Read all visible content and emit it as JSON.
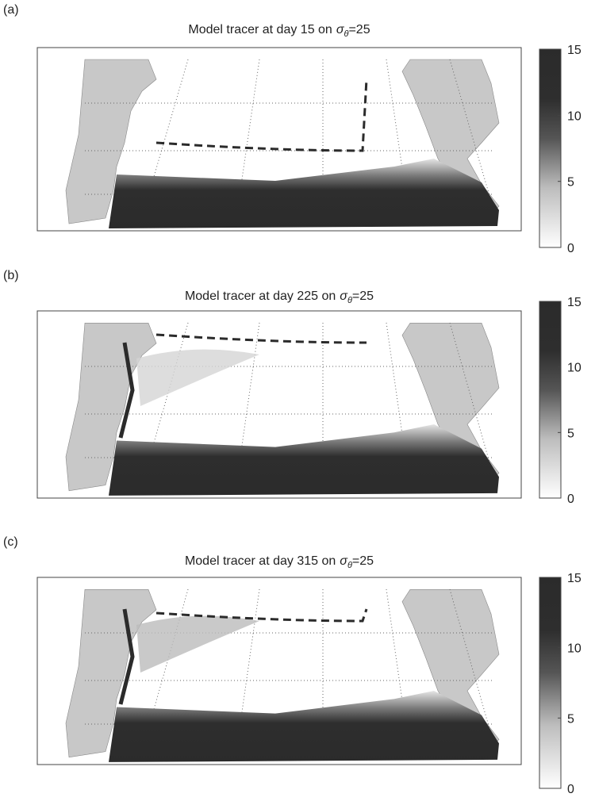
{
  "chart_data": [
    {
      "type": "map",
      "panel_label": "(a)",
      "title": "Model tracer at day 15 on",
      "symbol": "σ",
      "subscript": "θ",
      "suffix": "=25",
      "ylim": [
        0,
        15
      ],
      "yticks": [
        0,
        5,
        10,
        15
      ]
    },
    {
      "type": "map",
      "panel_label": "(b)",
      "title": "Model tracer at day 225 on",
      "symbol": "σ",
      "subscript": "θ",
      "suffix": "=25",
      "ylim": [
        0,
        15
      ],
      "yticks": [
        0,
        5,
        10,
        15
      ]
    },
    {
      "type": "map",
      "panel_label": "(c)",
      "title": "Model tracer at day 315 on",
      "symbol": "σ",
      "subscript": "θ",
      "suffix": "=25",
      "ylim": [
        0,
        15
      ],
      "yticks": [
        0,
        5,
        10,
        15
      ]
    }
  ]
}
